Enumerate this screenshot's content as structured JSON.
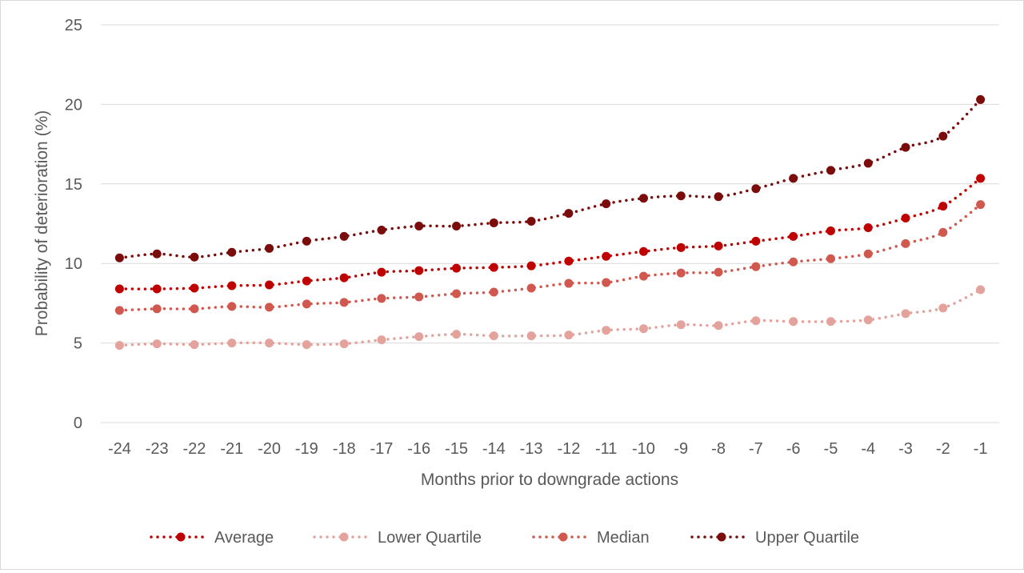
{
  "chart_data": {
    "type": "line",
    "title": "",
    "xlabel": "Months prior to downgrade actions",
    "ylabel": "Probability of deterioration (%)",
    "ylim": [
      0,
      25
    ],
    "yticks": [
      0,
      5,
      10,
      15,
      20,
      25
    ],
    "grid": true,
    "legend_position": "bottom",
    "categories": [
      "-24",
      "-23",
      "-22",
      "-21",
      "-20",
      "-19",
      "-18",
      "-17",
      "-16",
      "-15",
      "-14",
      "-13",
      "-12",
      "-11",
      "-10",
      "-9",
      "-8",
      "-7",
      "-6",
      "-5",
      "-4",
      "-3",
      "-2",
      "-1"
    ],
    "series": [
      {
        "name": "Average",
        "color": "#c00000",
        "values": [
          8.4,
          8.4,
          8.45,
          8.6,
          8.65,
          8.9,
          9.1,
          9.45,
          9.55,
          9.7,
          9.75,
          9.85,
          10.15,
          10.45,
          10.75,
          11.0,
          11.1,
          11.4,
          11.7,
          12.05,
          12.25,
          12.85,
          13.6,
          15.35
        ]
      },
      {
        "name": "Lower Quartile",
        "color": "#e3a39c",
        "values": [
          4.85,
          4.95,
          4.9,
          5.0,
          5.0,
          4.9,
          4.95,
          5.2,
          5.4,
          5.55,
          5.45,
          5.45,
          5.5,
          5.8,
          5.9,
          6.15,
          6.1,
          6.4,
          6.35,
          6.35,
          6.45,
          6.85,
          7.2,
          8.35
        ]
      },
      {
        "name": "Median",
        "color": "#d0584f",
        "values": [
          7.05,
          7.15,
          7.15,
          7.3,
          7.25,
          7.45,
          7.55,
          7.8,
          7.9,
          8.1,
          8.2,
          8.45,
          8.75,
          8.8,
          9.2,
          9.4,
          9.45,
          9.8,
          10.1,
          10.3,
          10.6,
          11.25,
          11.95,
          13.7
        ]
      },
      {
        "name": "Upper Quartile",
        "color": "#7b0c0c",
        "values": [
          10.35,
          10.6,
          10.4,
          10.7,
          10.95,
          11.4,
          11.7,
          12.1,
          12.35,
          12.35,
          12.55,
          12.65,
          13.15,
          13.75,
          14.1,
          14.25,
          14.2,
          14.7,
          15.35,
          15.85,
          16.3,
          17.3,
          18.0,
          20.3
        ]
      }
    ]
  }
}
